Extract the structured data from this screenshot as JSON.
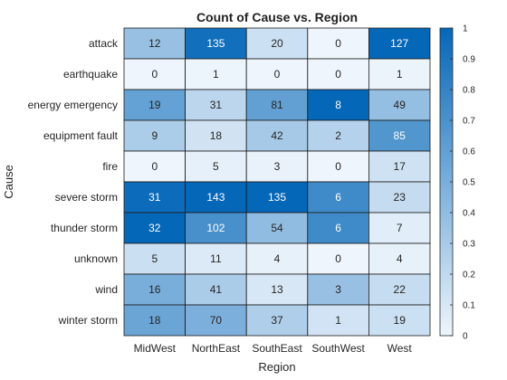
{
  "chart_data": {
    "type": "heatmap",
    "title": "Count of Cause vs. Region",
    "xlabel": "Region",
    "ylabel": "Cause",
    "x_categories": [
      "MidWest",
      "NorthEast",
      "SouthEast",
      "SouthWest",
      "West"
    ],
    "y_categories": [
      "attack",
      "earthquake",
      "energy emergency",
      "equipment fault",
      "fire",
      "severe storm",
      "thunder storm",
      "unknown",
      "wind",
      "winter storm"
    ],
    "values": [
      [
        12,
        135,
        20,
        0,
        127
      ],
      [
        0,
        1,
        0,
        0,
        1
      ],
      [
        19,
        31,
        81,
        8,
        49
      ],
      [
        9,
        18,
        42,
        2,
        85
      ],
      [
        0,
        5,
        3,
        0,
        17
      ],
      [
        31,
        143,
        135,
        6,
        23
      ],
      [
        32,
        102,
        54,
        6,
        7
      ],
      [
        5,
        11,
        4,
        0,
        4
      ],
      [
        16,
        41,
        13,
        3,
        22
      ],
      [
        18,
        70,
        37,
        1,
        19
      ]
    ],
    "normalization": "per-column",
    "colorbar": {
      "range": [
        0,
        1
      ],
      "ticks": [
        "0",
        "0.1",
        "0.2",
        "0.3",
        "0.4",
        "0.5",
        "0.6",
        "0.7",
        "0.8",
        "0.9",
        "1"
      ]
    },
    "colors": {
      "low": "#eef5fc",
      "high": "#0567b8",
      "cell_border": "#1a1a1a",
      "light_text": "#ffffff",
      "dark_text": "#262626"
    }
  }
}
